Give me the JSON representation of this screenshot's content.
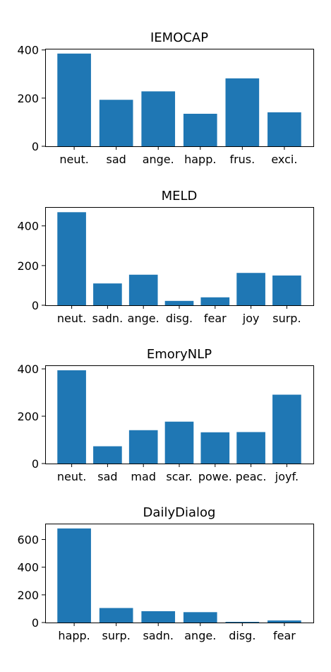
{
  "chart_data": [
    {
      "type": "bar",
      "title": "IEMOCAP",
      "categories": [
        "neut.",
        "sad",
        "ange.",
        "happ.",
        "frus.",
        "exci."
      ],
      "values": [
        385,
        193,
        228,
        135,
        282,
        141
      ],
      "ylim": [
        0,
        405
      ],
      "yticks": [
        0,
        200,
        400
      ],
      "xlabel": "",
      "ylabel": "",
      "grid": false,
      "color": "#1f77b4"
    },
    {
      "type": "bar",
      "title": "MELD",
      "categories": [
        "neut.",
        "sadn.",
        "ange.",
        "disg.",
        "fear",
        "joy",
        "surp."
      ],
      "values": [
        469,
        110,
        154,
        22,
        40,
        163,
        150
      ],
      "ylim": [
        0,
        495
      ],
      "yticks": [
        0,
        200,
        400
      ],
      "xlabel": "",
      "ylabel": "",
      "grid": false,
      "color": "#1f77b4"
    },
    {
      "type": "bar",
      "title": "EmoryNLP",
      "categories": [
        "neut.",
        "sad",
        "mad",
        "scar.",
        "powe.",
        "peac.",
        "joyf."
      ],
      "values": [
        394,
        73,
        141,
        177,
        132,
        133,
        291
      ],
      "ylim": [
        0,
        415
      ],
      "yticks": [
        0,
        200,
        400
      ],
      "xlabel": "",
      "ylabel": "",
      "grid": false,
      "color": "#1f77b4"
    },
    {
      "type": "bar",
      "title": "DailyDialog",
      "categories": [
        "happ.",
        "surp.",
        "sadn.",
        "ange.",
        "disg.",
        "fear"
      ],
      "values": [
        680,
        105,
        82,
        75,
        5,
        15
      ],
      "ylim": [
        0,
        715
      ],
      "yticks": [
        0,
        200,
        400,
        600
      ],
      "xlabel": "",
      "ylabel": "",
      "grid": false,
      "color": "#1f77b4"
    }
  ]
}
